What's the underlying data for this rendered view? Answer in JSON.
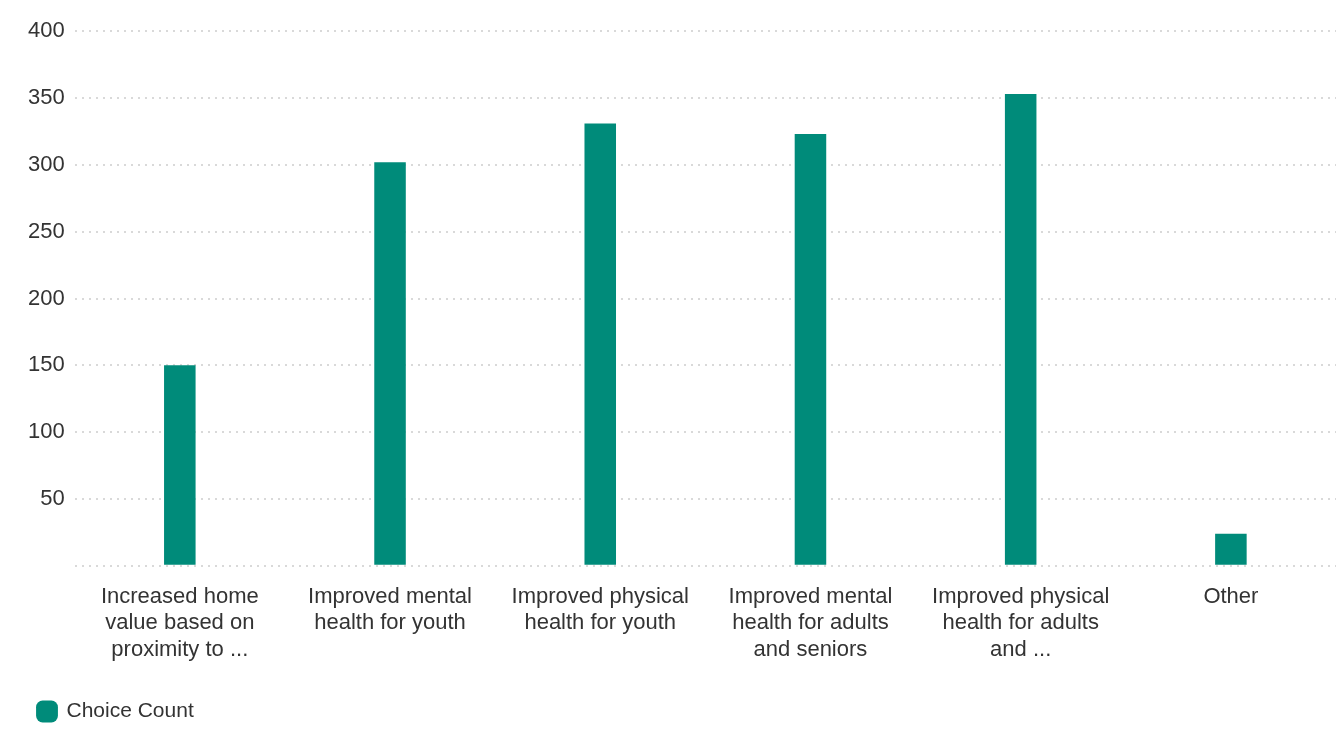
{
  "chart_data": {
    "type": "bar",
    "categories": [
      "Increased home value based on proximity to ...",
      "Improved mental health for youth",
      "Improved physical health for youth",
      "Improved mental health for adults and seniors",
      "Improved physical health for adults and ...",
      "Other"
    ],
    "series": [
      {
        "name": "Choice Count",
        "color": "#008b7a",
        "values": [
          150,
          302,
          331,
          323,
          353,
          24
        ]
      }
    ],
    "ylim": [
      0,
      400
    ],
    "yticks": [
      {
        "value": 0,
        "label": null
      },
      50,
      100,
      150,
      200,
      250,
      300,
      350,
      400
    ],
    "grid": "y",
    "legend": "bottom left"
  }
}
